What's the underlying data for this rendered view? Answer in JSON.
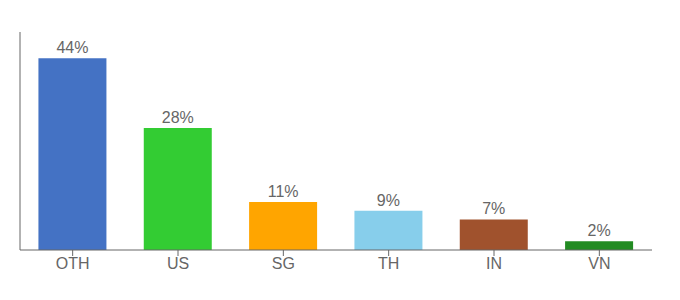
{
  "chart_data": {
    "type": "bar",
    "categories": [
      "OTH",
      "US",
      "SG",
      "TH",
      "IN",
      "VN"
    ],
    "values": [
      44,
      28,
      11,
      9,
      7,
      2
    ],
    "value_labels": [
      "44%",
      "28%",
      "11%",
      "9%",
      "7%",
      "2%"
    ],
    "colors": [
      "#4472C4",
      "#33CC33",
      "#FFA500",
      "#87CEEB",
      "#A0522D",
      "#228B22"
    ],
    "ylim": [
      0,
      50
    ],
    "data_labels": true,
    "tick_labels": "x"
  }
}
